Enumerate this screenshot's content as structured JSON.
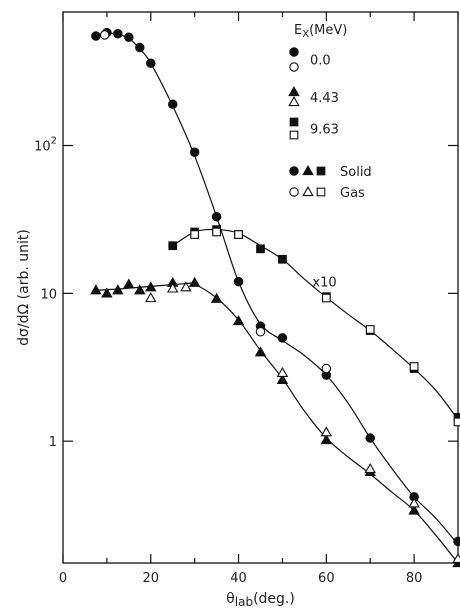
{
  "chart_data": {
    "type": "scatter",
    "title": "",
    "xlabel": "θlab(deg.)",
    "ylabel": "dσ/dΩ (arb. unit)",
    "xlim": [
      0,
      90
    ],
    "ylim": [
      0.15,
      800
    ],
    "yscale": "log",
    "grid": false,
    "x_ticks": [
      "0",
      "20",
      "40",
      "60",
      "80"
    ],
    "y_ticks": [
      {
        "value": 1,
        "label": "1"
      },
      {
        "value": 10,
        "label": "10"
      },
      {
        "value": 100,
        "label": "10",
        "sup": "2"
      }
    ],
    "legend": {
      "title": "EX(MeV)",
      "title_main": "E",
      "title_sub": "X",
      "title_rest": "(MeV)",
      "placement": "top-right",
      "entries": [
        {
          "label": "0.0",
          "marker": "circle"
        },
        {
          "label": "4.43",
          "marker": "triangle"
        },
        {
          "label": "9.63",
          "marker": "square"
        }
      ],
      "fill_legend": [
        {
          "label": "Solid",
          "fill": "filled"
        },
        {
          "label": "Gas",
          "fill": "open"
        }
      ]
    },
    "annotations": [
      {
        "text": "x10",
        "x": 55,
        "y": 12
      }
    ],
    "series": [
      {
        "marker": "circle",
        "solid": [
          [
            7.5,
            550
          ],
          [
            10,
            580
          ],
          [
            12.5,
            570
          ],
          [
            15,
            540
          ],
          [
            17.5,
            460
          ],
          [
            20,
            360
          ],
          [
            25,
            190
          ],
          [
            30,
            90
          ],
          [
            35,
            33
          ],
          [
            40,
            12
          ],
          [
            45,
            6
          ],
          [
            50,
            5
          ],
          [
            60,
            2.8
          ],
          [
            70,
            1.05
          ],
          [
            80,
            0.42
          ],
          [
            90,
            0.21
          ]
        ],
        "gas": [
          [
            9.5,
            560
          ],
          [
            45,
            5.5
          ],
          [
            60,
            3.1
          ]
        ],
        "curve": [
          [
            7.5,
            550
          ],
          [
            10,
            575
          ],
          [
            12.5,
            565
          ],
          [
            15,
            530
          ],
          [
            17.5,
            450
          ],
          [
            20,
            360
          ],
          [
            25,
            185
          ],
          [
            30,
            85
          ],
          [
            35,
            33
          ],
          [
            40,
            12
          ],
          [
            45,
            6.2
          ],
          [
            50,
            4.8
          ],
          [
            55,
            3.8
          ],
          [
            60,
            2.8
          ],
          [
            65,
            1.8
          ],
          [
            70,
            1.05
          ],
          [
            75,
            0.65
          ],
          [
            80,
            0.42
          ],
          [
            85,
            0.3
          ],
          [
            90,
            0.2
          ]
        ]
      },
      {
        "marker": "triangle",
        "solid": [
          [
            7.5,
            10.5
          ],
          [
            10,
            10
          ],
          [
            12.5,
            10.5
          ],
          [
            15,
            11.5
          ],
          [
            17.5,
            10.5
          ],
          [
            20,
            11
          ],
          [
            25,
            11.8
          ],
          [
            30,
            11.8
          ],
          [
            35,
            9.2
          ],
          [
            40,
            6.5
          ],
          [
            45,
            4
          ],
          [
            50,
            2.6
          ],
          [
            60,
            1.02
          ],
          [
            70,
            0.62
          ],
          [
            80,
            0.34
          ],
          [
            90,
            0.15
          ]
        ],
        "gas": [
          [
            20,
            9.3
          ],
          [
            25,
            10.8
          ],
          [
            28,
            11
          ],
          [
            50,
            2.9
          ],
          [
            60,
            1.15
          ],
          [
            70,
            0.65
          ],
          [
            80,
            0.38
          ],
          [
            90,
            0.16
          ]
        ],
        "curve": [
          [
            7.5,
            10.5
          ],
          [
            12.5,
            10.7
          ],
          [
            17.5,
            11
          ],
          [
            22.5,
            11.3
          ],
          [
            27.5,
            11.6
          ],
          [
            30,
            11.5
          ],
          [
            35,
            9.3
          ],
          [
            40,
            6.6
          ],
          [
            45,
            4.1
          ],
          [
            50,
            2.65
          ],
          [
            55,
            1.6
          ],
          [
            60,
            1.05
          ],
          [
            65,
            0.78
          ],
          [
            70,
            0.6
          ],
          [
            75,
            0.45
          ],
          [
            80,
            0.34
          ],
          [
            85,
            0.23
          ],
          [
            90,
            0.15
          ]
        ]
      },
      {
        "marker": "square",
        "scaled": "x10",
        "solid": [
          [
            25,
            21
          ],
          [
            30,
            26
          ],
          [
            35,
            27
          ],
          [
            40,
            25
          ],
          [
            45,
            20
          ],
          [
            50,
            17
          ],
          [
            60,
            9.5
          ],
          [
            70,
            5.6
          ],
          [
            80,
            3.1
          ],
          [
            90,
            1.45
          ]
        ],
        "gas": [
          [
            30,
            25
          ],
          [
            35,
            26
          ],
          [
            40,
            25
          ],
          [
            60,
            9.3
          ],
          [
            70,
            5.7
          ],
          [
            80,
            3.2
          ],
          [
            90,
            1.35
          ]
        ],
        "curve": [
          [
            25,
            21
          ],
          [
            30,
            26
          ],
          [
            35,
            27
          ],
          [
            40,
            25.5
          ],
          [
            45,
            21
          ],
          [
            50,
            17
          ],
          [
            55,
            12.5
          ],
          [
            60,
            9.4
          ],
          [
            65,
            7.2
          ],
          [
            70,
            5.6
          ],
          [
            75,
            4.2
          ],
          [
            80,
            3.1
          ],
          [
            85,
            2.2
          ],
          [
            90,
            1.4
          ]
        ]
      }
    ]
  }
}
